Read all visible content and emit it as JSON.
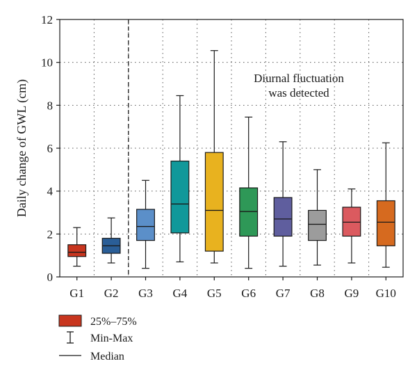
{
  "chart_data": {
    "type": "box",
    "ylabel": "Daily change of GWL (cm)",
    "ylim": [
      0,
      12
    ],
    "yticks": [
      0,
      2,
      4,
      6,
      8,
      10,
      12
    ],
    "grid": "dotted",
    "divider_after": "G2",
    "annotation": [
      "Diurnal fluctuation",
      "was detected"
    ],
    "groups": [
      {
        "name": "G1",
        "min": 0.5,
        "q1": 0.95,
        "median": 1.15,
        "q3": 1.5,
        "max": 2.3,
        "color": "#c8351e"
      },
      {
        "name": "G2",
        "min": 0.65,
        "q1": 1.1,
        "median": 1.45,
        "q3": 1.8,
        "max": 2.75,
        "color": "#2a5e97"
      },
      {
        "name": "G3",
        "min": 0.4,
        "q1": 1.7,
        "median": 2.35,
        "q3": 3.15,
        "max": 4.5,
        "color": "#5b8fc9"
      },
      {
        "name": "G4",
        "min": 0.7,
        "q1": 2.05,
        "median": 3.4,
        "q3": 5.4,
        "max": 8.45,
        "color": "#11989a"
      },
      {
        "name": "G5",
        "min": 0.65,
        "q1": 1.2,
        "median": 3.1,
        "q3": 5.8,
        "max": 10.55,
        "color": "#e8b21f"
      },
      {
        "name": "G6",
        "min": 0.4,
        "q1": 1.9,
        "median": 3.05,
        "q3": 4.15,
        "max": 7.45,
        "color": "#2e9857"
      },
      {
        "name": "G7",
        "min": 0.5,
        "q1": 1.9,
        "median": 2.7,
        "q3": 3.7,
        "max": 6.3,
        "color": "#5f5e9e"
      },
      {
        "name": "G8",
        "min": 0.55,
        "q1": 1.7,
        "median": 2.45,
        "q3": 3.1,
        "max": 5.0,
        "color": "#9c9c9c"
      },
      {
        "name": "G9",
        "min": 0.65,
        "q1": 1.9,
        "median": 2.55,
        "q3": 3.25,
        "max": 4.1,
        "color": "#db5a5f"
      },
      {
        "name": "G10",
        "min": 0.45,
        "q1": 1.45,
        "median": 2.55,
        "q3": 3.55,
        "max": 6.25,
        "color": "#d66a1f"
      }
    ],
    "legend": {
      "iqr_label": "25%–75%",
      "iqr_color": "#c8351e",
      "range_label": "Min-Max",
      "median_label": "Median"
    }
  }
}
